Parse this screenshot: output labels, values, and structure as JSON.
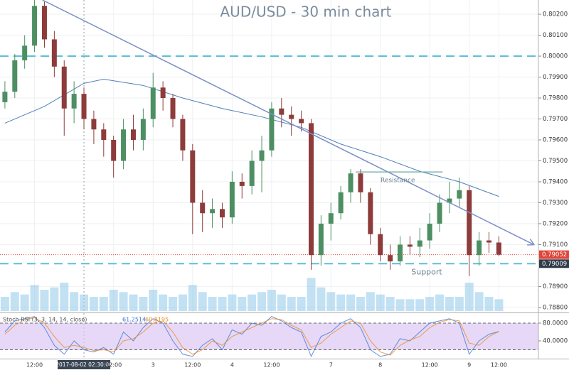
{
  "chart_data": [
    {
      "type": "candlestick",
      "title": "AUD/USD - 30 min chart",
      "categories": [
        null,
        null,
        null,
        "12:00",
        null,
        null,
        null,
        null,
        "2017-08-02 02:30:00",
        null,
        null,
        "12:00",
        null,
        null,
        null,
        "3",
        null,
        null,
        null,
        "12:00",
        null,
        null,
        null,
        "4",
        null,
        null,
        null,
        "12:00",
        null,
        null,
        null,
        null,
        null,
        "7",
        null,
        null,
        null,
        null,
        "8",
        null,
        null,
        null,
        null,
        "12:00",
        null,
        null,
        null,
        "9",
        null,
        null,
        "12:00"
      ],
      "open": [
        0.7978,
        0.7983,
        0.7998,
        0.8005,
        0.8024,
        0.8008,
        0.7995,
        0.7975,
        0.7982,
        0.797,
        0.7965,
        0.796,
        0.795,
        0.7965,
        0.796,
        0.797,
        0.7985,
        0.798,
        0.797,
        0.7955,
        0.793,
        0.7925,
        0.7927,
        0.7923,
        0.794,
        0.7938,
        0.795,
        0.7955,
        0.7975,
        0.7972,
        0.797,
        0.7968,
        0.7905,
        0.792,
        0.7925,
        0.7935,
        0.7944,
        0.7935,
        0.7915,
        0.7905,
        0.7902,
        0.791,
        0.7909,
        0.7912,
        0.792,
        0.793,
        0.7932,
        0.7936,
        0.7905,
        0.7912,
        0.7911
      ],
      "high": [
        0.7988,
        0.8001,
        0.801,
        0.8027,
        0.8026,
        0.8012,
        0.7998,
        0.7988,
        0.7985,
        0.7974,
        0.7968,
        0.7962,
        0.797,
        0.7972,
        0.7975,
        0.7992,
        0.7988,
        0.7982,
        0.7972,
        0.7958,
        0.7936,
        0.7932,
        0.793,
        0.7945,
        0.7944,
        0.7955,
        0.7962,
        0.7978,
        0.798,
        0.7976,
        0.7974,
        0.797,
        0.7924,
        0.793,
        0.7938,
        0.7946,
        0.7946,
        0.7937,
        0.7918,
        0.791,
        0.7914,
        0.7914,
        0.7918,
        0.7925,
        0.7934,
        0.794,
        0.7942,
        0.7938,
        0.7916,
        0.7916,
        0.7914
      ],
      "low": [
        0.7975,
        0.798,
        0.7994,
        0.8002,
        0.8004,
        0.799,
        0.7962,
        0.7968,
        0.7965,
        0.7958,
        0.7952,
        0.7942,
        0.7946,
        0.7955,
        0.7955,
        0.7966,
        0.7974,
        0.7966,
        0.795,
        0.7915,
        0.7916,
        0.7918,
        0.7918,
        0.792,
        0.7932,
        0.7934,
        0.7935,
        0.7952,
        0.7966,
        0.7962,
        0.7964,
        0.7898,
        0.79,
        0.7912,
        0.7922,
        0.793,
        0.793,
        0.791,
        0.7902,
        0.7898,
        0.79,
        0.7905,
        0.7904,
        0.7908,
        0.7916,
        0.7925,
        0.7928,
        0.7895,
        0.79,
        0.7906,
        0.79045
      ],
      "close": [
        0.7983,
        0.7998,
        0.8005,
        0.8024,
        0.8008,
        0.7995,
        0.7975,
        0.7982,
        0.797,
        0.7965,
        0.796,
        0.795,
        0.7965,
        0.796,
        0.797,
        0.7985,
        0.798,
        0.797,
        0.7955,
        0.793,
        0.7925,
        0.7927,
        0.7923,
        0.794,
        0.7938,
        0.795,
        0.7955,
        0.7975,
        0.7972,
        0.797,
        0.7968,
        0.7905,
        0.792,
        0.7925,
        0.7935,
        0.7944,
        0.7935,
        0.7915,
        0.7905,
        0.7902,
        0.791,
        0.7909,
        0.7912,
        0.792,
        0.793,
        0.7932,
        0.7936,
        0.7905,
        0.7912,
        0.7911,
        0.79052
      ],
      "up_color": "#4d8f63",
      "down_color": "#8e3b3b",
      "volume": [
        30,
        40,
        35,
        55,
        45,
        50,
        60,
        40,
        35,
        30,
        30,
        45,
        40,
        35,
        30,
        45,
        35,
        30,
        35,
        55,
        40,
        30,
        30,
        35,
        30,
        35,
        40,
        45,
        35,
        30,
        30,
        70,
        50,
        40,
        35,
        35,
        30,
        40,
        35,
        30,
        25,
        25,
        25,
        30,
        35,
        30,
        30,
        60,
        40,
        30,
        25
      ],
      "volume_lim": [
        0,
        150
      ],
      "volume_color": "#8fc9ea",
      "ma": {
        "color": "#4f7fb8",
        "x": [
          0,
          4,
          8,
          10,
          14,
          18,
          22,
          26,
          30,
          34,
          38,
          42,
          46,
          50
        ],
        "values": [
          0.7968,
          0.7976,
          0.7987,
          0.7989,
          0.7986,
          0.798,
          0.7975,
          0.7971,
          0.7966,
          0.7958,
          0.7952,
          0.7945,
          0.794,
          0.7933
        ]
      },
      "ylim": [
        0.78776,
        0.80268
      ],
      "yticks": [
        {
          "value": 0.802,
          "label": "0.80200"
        },
        {
          "value": 0.801,
          "label": "0.80100"
        },
        {
          "value": 0.8,
          "label": "0.80000"
        },
        {
          "value": 0.799,
          "label": "0.79900"
        },
        {
          "value": 0.798,
          "label": "0.79800"
        },
        {
          "value": 0.797,
          "label": "0.79700"
        },
        {
          "value": 0.796,
          "label": "0.79600"
        },
        {
          "value": 0.795,
          "label": "0.79500"
        },
        {
          "value": 0.794,
          "label": "0.79400"
        },
        {
          "value": 0.793,
          "label": "0.79300"
        },
        {
          "value": 0.792,
          "label": "0.79200"
        },
        {
          "value": 0.791,
          "label": "0.79100"
        },
        {
          "value": 0.789,
          "label": "0.78900"
        },
        {
          "value": 0.788,
          "label": "0.78800"
        }
      ],
      "grid": true,
      "trendlines": [
        {
          "x": [
            3.8,
            53.5
          ],
          "y": [
            0.80268,
            0.79101
          ],
          "arrow": true,
          "color": "#7b8fc6"
        },
        {
          "x": [
            35.5,
            44.3
          ],
          "y": [
            0.79447,
            0.79447
          ],
          "label": "Resistance",
          "color": "#6aa9a0"
        }
      ],
      "levels": [
        {
          "value": 0.8,
          "color": "#5bc0d8"
        },
        {
          "value": 0.79009,
          "label": "Support",
          "tag": "0.79009",
          "tag_color": "#2f3d4a",
          "color": "#5bc0d8"
        }
      ],
      "last_price": {
        "value": 0.79052,
        "label": "0.79052",
        "color": "#e0443a"
      }
    },
    {
      "type": "line",
      "title": "Stoch RSI (3, 3, 14, 14, close)",
      "series": [
        {
          "color": "#3c78d8",
          "values": [
            60,
            85,
            90,
            95,
            70,
            30,
            10,
            40,
            20,
            15,
            25,
            10,
            60,
            40,
            70,
            90,
            80,
            40,
            10,
            5,
            30,
            45,
            20,
            65,
            55,
            80,
            75,
            95,
            85,
            70,
            60,
            5,
            50,
            60,
            80,
            90,
            70,
            20,
            5,
            10,
            45,
            40,
            60,
            80,
            85,
            90,
            80,
            10,
            40,
            55,
            61.2514
          ]
        },
        {
          "color": "#f08a24",
          "values": [
            55,
            75,
            88,
            92,
            80,
            50,
            25,
            30,
            25,
            18,
            20,
            15,
            40,
            45,
            60,
            80,
            85,
            60,
            25,
            10,
            20,
            40,
            30,
            50,
            60,
            70,
            80,
            90,
            88,
            75,
            65,
            25,
            35,
            55,
            70,
            85,
            80,
            40,
            15,
            8,
            30,
            42,
            50,
            70,
            82,
            88,
            85,
            35,
            30,
            50,
            60.8195
          ]
        }
      ],
      "ylim": [
        0,
        100
      ],
      "yticks": [
        {
          "value": 80,
          "label": "80.0000"
        },
        {
          "value": 40,
          "label": "40.0000"
        }
      ],
      "band": [
        20,
        80
      ],
      "band_color": "#dcc8f2"
    }
  ]
}
